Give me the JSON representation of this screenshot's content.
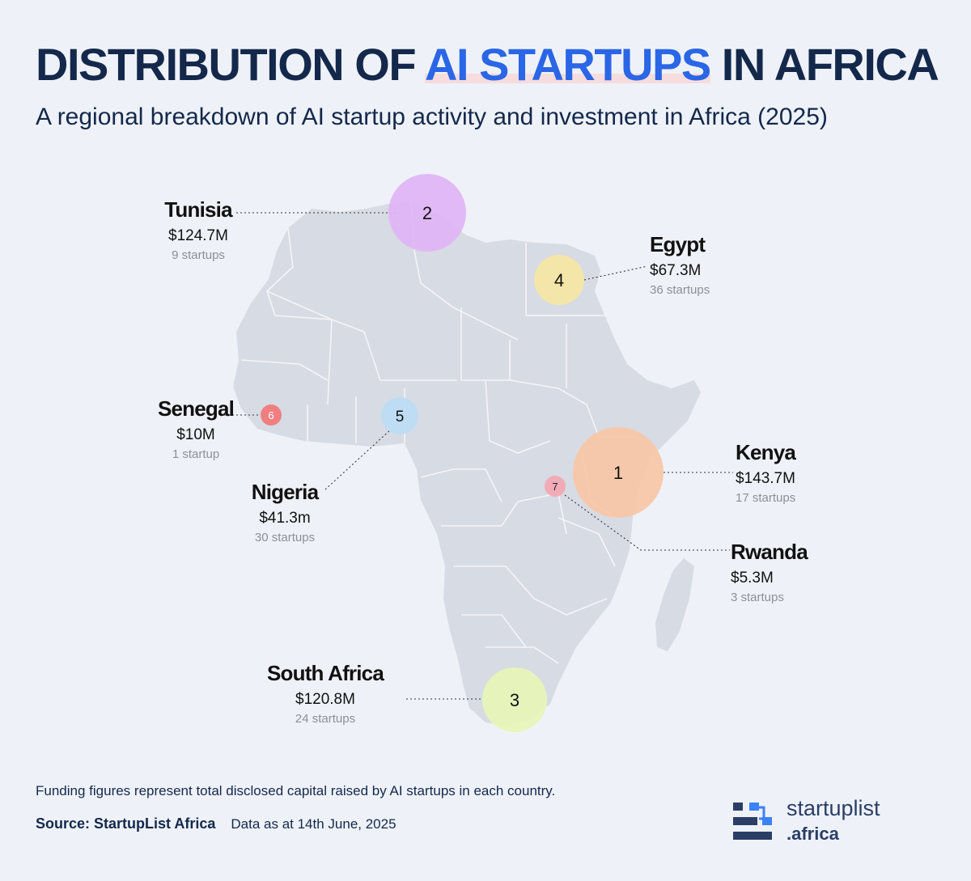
{
  "title": {
    "part1": "DISTRIBUTION OF ",
    "highlight": "AI STARTUPS",
    "part2": " IN AFRICA"
  },
  "subtitle": "A regional breakdown of AI startup activity and investment in Africa (2025)",
  "countries": [
    {
      "rank": "1",
      "name": "Kenya",
      "funding": "$143.7M",
      "startups": "17 startups",
      "color": "#f9c7a6"
    },
    {
      "rank": "2",
      "name": "Tunisia",
      "funding": "$124.7M",
      "startups": "9 startups",
      "color": "#e1b4f6"
    },
    {
      "rank": "3",
      "name": "South Africa",
      "funding": "$120.8M",
      "startups": "24 startups",
      "color": "#e7f6b8"
    },
    {
      "rank": "4",
      "name": "Egypt",
      "funding": "$67.3M",
      "startups": "36 startups",
      "color": "#f6e6a4"
    },
    {
      "rank": "5",
      "name": "Nigeria",
      "funding": "$41.3m",
      "startups": "30 startups",
      "color": "#bcdcf4"
    },
    {
      "rank": "6",
      "name": "Senegal",
      "funding": "$10M",
      "startups": "1 startup",
      "color": "#f07a7a"
    },
    {
      "rank": "7",
      "name": "Rwanda",
      "funding": "$5.3M",
      "startups": "3 startups",
      "color": "#f2a9b4"
    }
  ],
  "footnote": "Funding figures represent total disclosed capital raised by AI startups in each country.",
  "source": {
    "label": "Source: StartupList Africa",
    "date": "Data as at 14th June,  2025"
  },
  "logo": {
    "line1": "startuplist",
    "line2": ".africa",
    "color": "#2b3e66",
    "accent": "#3b82f6"
  },
  "colors": {
    "land": "#d7dbe3",
    "border": "#f3f5f9",
    "background": "#eef2f8"
  }
}
